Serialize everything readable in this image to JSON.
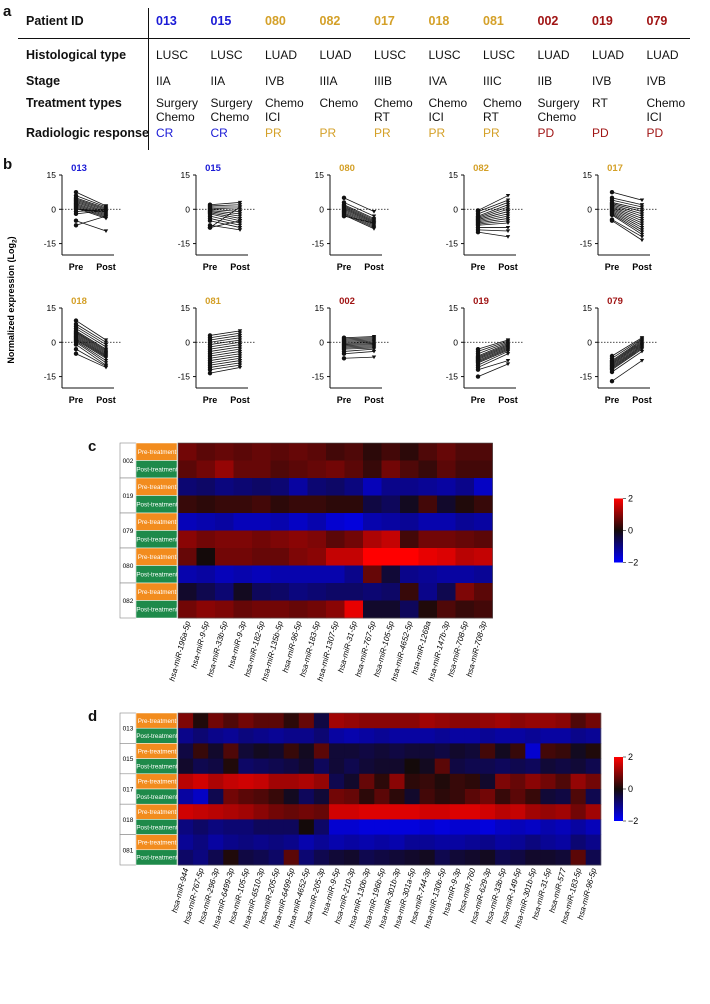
{
  "panel_letters": {
    "a": "a",
    "b": "b",
    "c": "c",
    "d": "d"
  },
  "panel_a": {
    "row_labels": {
      "patient_id": "Patient ID",
      "histological_type": "Histological type",
      "stage": "Stage",
      "treatment_types": "Treatment types",
      "radiologic_response": "Radiologic response"
    },
    "patients": [
      {
        "id": "013",
        "color": "#1a1ad6",
        "histo": "LUSC",
        "stage": "IIA",
        "treat1": "Surgery",
        "treat2": "Chemo",
        "response": "CR"
      },
      {
        "id": "015",
        "color": "#1a1ad6",
        "histo": "LUSC",
        "stage": "IIA",
        "treat1": "Surgery",
        "treat2": "Chemo",
        "response": "CR"
      },
      {
        "id": "080",
        "color": "#d4a028",
        "histo": "LUAD",
        "stage": "IVB",
        "treat1": "Chemo",
        "treat2": "ICI",
        "response": "PR"
      },
      {
        "id": "082",
        "color": "#d4a028",
        "histo": "LUAD",
        "stage": "IIIA",
        "treat1": "Chemo",
        "treat2": "",
        "response": "PR"
      },
      {
        "id": "017",
        "color": "#d4a028",
        "histo": "LUSC",
        "stage": "IIIB",
        "treat1": "Chemo",
        "treat2": "RT",
        "response": "PR"
      },
      {
        "id": "018",
        "color": "#d4a028",
        "histo": "LUSC",
        "stage": "IVA",
        "treat1": "Chemo",
        "treat2": "ICI",
        "response": "PR"
      },
      {
        "id": "081",
        "color": "#d4a028",
        "histo": "LUSC",
        "stage": "IIIC",
        "treat1": "Chemo",
        "treat2": "RT",
        "response": "PR"
      },
      {
        "id": "002",
        "color": "#a01414",
        "histo": "LUAD",
        "stage": "IIB",
        "treat1": "Surgery",
        "treat2": "Chemo",
        "response": "PD"
      },
      {
        "id": "019",
        "color": "#a01414",
        "histo": "LUAD",
        "stage": "IVB",
        "treat1": "RT",
        "treat2": "",
        "response": "PD"
      },
      {
        "id": "079",
        "color": "#a01414",
        "histo": "LUAD",
        "stage": "IVB",
        "treat1": "Chemo",
        "treat2": "ICI",
        "response": "PD"
      }
    ]
  },
  "chart_data": [
    {
      "type": "line",
      "panel": "b",
      "ylabel": "Normalized expression (Log",
      "ylabel_sub": "2",
      "ylabel_close": ")",
      "x_labels": [
        "Pre",
        "Post"
      ],
      "yticks": [
        "15",
        "0",
        "-15"
      ],
      "ylim": [
        -20,
        15
      ],
      "subplots": [
        {
          "title": "013",
          "color": "#1a1ad6",
          "pre": [
            7.5,
            6,
            5,
            4.5,
            4,
            3.5,
            3,
            2.5,
            2,
            1.5,
            1,
            0.5,
            0,
            -1,
            -2,
            -5,
            -7
          ],
          "post": [
            1.5,
            1,
            0.5,
            0,
            -0.5,
            -1,
            -1.5,
            -2,
            -2.5,
            -3,
            -3.5,
            -4,
            -1,
            0,
            -0.5,
            -9.5,
            -3
          ]
        },
        {
          "title": "015",
          "color": "#1a1ad6",
          "pre": [
            2,
            1.5,
            1,
            0.5,
            0,
            -0.5,
            -1,
            -1.5,
            -2,
            -3,
            -4,
            -5,
            -7,
            -8,
            -8
          ],
          "post": [
            3,
            2,
            1,
            0,
            -1,
            -2,
            -3,
            -4,
            -5,
            -6,
            -7,
            -8,
            -9,
            -5,
            1
          ]
        },
        {
          "title": "080",
          "color": "#d4a028",
          "pre": [
            5,
            3,
            2,
            1.5,
            1,
            0.5,
            0,
            -0.5,
            -1,
            -1.5,
            -2,
            -2.5,
            -3
          ],
          "post": [
            -1,
            -3,
            -4,
            -4.5,
            -5,
            -5.5,
            -6,
            -6.5,
            -7,
            -7.5,
            -8,
            -8.5,
            -6
          ]
        },
        {
          "title": "082",
          "color": "#d4a028",
          "pre": [
            -0.5,
            -1,
            -2,
            -3,
            -3.5,
            -4,
            -4.5,
            -5,
            -5.5,
            -6,
            -6.5,
            -7,
            -8,
            -9,
            -10
          ],
          "post": [
            6,
            4,
            3,
            2,
            1,
            0,
            -1,
            -2,
            -3,
            -4,
            -5,
            -6,
            -8,
            -9.5,
            -12
          ]
        },
        {
          "title": "017",
          "color": "#d4a028",
          "pre": [
            7.5,
            5,
            4,
            3,
            2.5,
            2,
            1.5,
            1,
            0.5,
            0,
            -0.5,
            -1,
            -1.5,
            -2,
            -2.5,
            -4.5,
            -5
          ],
          "post": [
            4,
            2,
            1,
            0,
            -1,
            -2,
            -3,
            -4,
            -5,
            -6,
            -7,
            -8,
            -9,
            -10,
            -11,
            -12,
            -13.5
          ]
        },
        {
          "title": "018",
          "color": "#d4a028",
          "pre": [
            9.5,
            8,
            7,
            6,
            5,
            4.5,
            4,
            3.5,
            3,
            2.5,
            2,
            1.5,
            1,
            0.5,
            0,
            -1,
            -3,
            -5
          ],
          "post": [
            1,
            0,
            -1,
            -2,
            -3,
            -3.5,
            -4,
            -4.5,
            -5,
            -5.5,
            -6,
            -6.5,
            -7,
            -8,
            -9,
            -10,
            -10.5,
            -11
          ]
        },
        {
          "title": "081",
          "color": "#d4a028",
          "pre": [
            3,
            2,
            1,
            0,
            -1,
            -2,
            -3,
            -4,
            -5,
            -6,
            -7,
            -8,
            -9,
            -10,
            -11,
            -12,
            -13.5
          ],
          "post": [
            5,
            4,
            3,
            2,
            1,
            0,
            -1,
            -2,
            -3,
            -4,
            -5,
            -6,
            -7,
            -8,
            -9,
            -10,
            -11
          ]
        },
        {
          "title": "002",
          "color": "#a01414",
          "pre": [
            2,
            1.5,
            1,
            0.5,
            0,
            -0.5,
            -1,
            -1.5,
            -2,
            -2.5,
            -3,
            -4,
            -5,
            -7
          ],
          "post": [
            2.5,
            2,
            1.5,
            1,
            0.5,
            0,
            -0.5,
            -1,
            -1.5,
            -2,
            -2.5,
            -3,
            -4,
            -6.5
          ]
        },
        {
          "title": "019",
          "color": "#a01414",
          "pre": [
            -3,
            -4,
            -5,
            -6,
            -6.5,
            -7,
            -7.5,
            -8,
            -8.5,
            -9,
            -10,
            -11,
            -12,
            -15
          ],
          "post": [
            1,
            0.5,
            0,
            -0.5,
            -1,
            -1.5,
            -2,
            -2.5,
            -3,
            -3.5,
            -4,
            -5,
            -8,
            -9.5
          ]
        },
        {
          "title": "079",
          "color": "#a01414",
          "pre": [
            -6,
            -7,
            -8,
            -8.5,
            -9,
            -9.5,
            -10,
            -10.5,
            -11,
            -11.5,
            -12,
            -13,
            -17
          ],
          "post": [
            2,
            1.5,
            1,
            0.5,
            0,
            -0.5,
            -1,
            -1.5,
            -2,
            -2.5,
            -3,
            -4,
            -8
          ]
        }
      ]
    },
    {
      "type": "heatmap",
      "panel": "c",
      "patients": [
        "002",
        "019",
        "079",
        "080",
        "082"
      ],
      "row_labels": [
        "Pre-treatment",
        "Post-treatment"
      ],
      "columns": [
        "hsa-miR-196a-5p",
        "hsa-miR-9-5p",
        "hsa-miR-33b-5p",
        "hsa-miR-9-3p",
        "hsa-miR-182-5p",
        "hsa-miR-135b-5p",
        "hsa-miR-96-5p",
        "hsa-miR-183-5p",
        "hsa-miR-1307-5p",
        "hsa-miR-31-5p",
        "hsa-miR-767-5p",
        "hsa-miR-105-5p",
        "hsa-miR-4652-5p",
        "hsa-miR-1269a",
        "hsa-miR-147b-3p",
        "hsa-miR-708-5p",
        "hsa-miR-708-3p"
      ],
      "scale_labels": [
        "2",
        "0",
        "−2"
      ],
      "values": [
        [
          0.8,
          0.6,
          0.7,
          0.6,
          0.7,
          0.6,
          0.7,
          0.6,
          0.4,
          0.5,
          0.2,
          0.4,
          0.2,
          0.5,
          0.7,
          0.5,
          0.5
        ],
        [
          0.6,
          0.8,
          1.1,
          0.7,
          0.7,
          0.5,
          0.6,
          0.7,
          0.8,
          0.6,
          0.3,
          0.8,
          0.5,
          0.3,
          0.6,
          0.4,
          0.4
        ],
        [
          -0.8,
          -0.7,
          -0.9,
          -0.8,
          -0.7,
          -0.8,
          -1.2,
          -0.8,
          -0.7,
          -0.9,
          -1.4,
          -1.0,
          -1.0,
          -1.1,
          -1.2,
          -1.0,
          -1.5
        ],
        [
          0.3,
          0.2,
          0.3,
          0.3,
          0.4,
          0.2,
          0.3,
          0.3,
          0.2,
          0.2,
          -0.4,
          -0.6,
          -0.1,
          0.4,
          -0.2,
          0.1,
          0.3
        ],
        [
          -1.4,
          -1.3,
          -1.2,
          -1.4,
          -1.4,
          -1.3,
          -1.5,
          -1.3,
          -1.6,
          -1.7,
          -1.3,
          -1.2,
          -1.1,
          -1.3,
          -1.3,
          -1.1,
          -1.2
        ],
        [
          1.0,
          0.8,
          0.9,
          0.9,
          0.8,
          0.9,
          1.0,
          0.9,
          0.6,
          0.8,
          1.3,
          1.5,
          0.4,
          0.8,
          0.8,
          0.7,
          0.6
        ],
        [
          0.7,
          0.0,
          0.8,
          0.8,
          0.7,
          0.7,
          0.9,
          1.0,
          1.5,
          1.5,
          2.0,
          2.0,
          2.0,
          1.8,
          1.7,
          1.4,
          1.5
        ],
        [
          -1.3,
          -1.2,
          -1.4,
          -1.3,
          -1.4,
          -1.3,
          -1.3,
          -1.3,
          -1.3,
          -1.0,
          0.7,
          -0.3,
          -1.0,
          -1.1,
          -1.2,
          -1.2,
          -1.1
        ],
        [
          -0.2,
          -0.5,
          -0.8,
          -0.1,
          -0.6,
          -0.7,
          -0.9,
          -0.8,
          -0.7,
          -0.7,
          -0.8,
          -0.7,
          0.3,
          -1.0,
          -0.5,
          0.9,
          0.6
        ],
        [
          0.8,
          1.0,
          0.9,
          0.7,
          0.8,
          0.8,
          0.7,
          0.8,
          1.0,
          1.8,
          -0.2,
          -0.2,
          -0.6,
          0.1,
          0.5,
          0.3,
          0.4
        ]
      ]
    },
    {
      "type": "heatmap",
      "panel": "d",
      "patients": [
        "013",
        "015",
        "017",
        "018",
        "081"
      ],
      "row_labels": [
        "Pre-treatment",
        "Post-treatment"
      ],
      "columns": [
        "hsa-miR-944",
        "hsa-miR-767-5p",
        "hsa-miR-296-3p",
        "hsa-miR-6499-3p",
        "hsa-miR-105-5p",
        "hsa-miR-6510-3p",
        "hsa-miR-205-5p",
        "hsa-miR-6499-5p",
        "hsa-miR-4652-5p",
        "hsa-miR-205-3p",
        "hsa-miR-9-5p",
        "hsa-miR-210-3p",
        "hsa-miR-130b-3p",
        "hsa-miR-196b-5p",
        "hsa-miR-301b-3p",
        "hsa-miR-301a-5p",
        "hsa-miR-744-3p",
        "hsa-miR-130b-5p",
        "hsa-miR-9-3p",
        "hsa-miR-760",
        "hsa-miR-629-3p",
        "hsa-miR-33b-5p",
        "hsa-miR-149-5p",
        "hsa-miR-301b-5p",
        "hsa-miR-31-5p",
        "hsa-miR-577",
        "hsa-miR-183-5p",
        "hsa-miR-96-5p"
      ],
      "scale_labels": [
        "2",
        "0",
        "−2"
      ],
      "values": [
        [
          0.9,
          0.1,
          0.8,
          0.5,
          0.8,
          0.6,
          0.6,
          0.2,
          0.7,
          -0.4,
          1.2,
          1.1,
          1.0,
          1.0,
          1.0,
          1.0,
          1.2,
          1.1,
          1.0,
          1.0,
          1.1,
          1.2,
          1.0,
          1.1,
          1.1,
          1.0,
          0.5,
          0.8
        ],
        [
          -1.0,
          -0.8,
          -1.0,
          -1.1,
          -0.9,
          -1.0,
          -1.1,
          -1.0,
          -1.0,
          -0.8,
          -1.2,
          -1.3,
          -1.2,
          -1.1,
          -1.2,
          -1.2,
          -1.2,
          -1.1,
          -1.2,
          -1.2,
          -1.1,
          -1.2,
          -1.2,
          -1.1,
          -1.2,
          -1.2,
          -1.0,
          -1.1
        ],
        [
          -0.4,
          0.3,
          -0.2,
          0.5,
          -0.3,
          -0.1,
          -0.2,
          0.3,
          -0.1,
          0.6,
          -0.3,
          -0.3,
          -0.4,
          -0.3,
          -0.4,
          -0.3,
          -0.3,
          -0.4,
          -0.2,
          -0.3,
          0.4,
          -0.1,
          0.3,
          -1.6,
          0.4,
          0.3,
          -0.1,
          0.1
        ],
        [
          -0.2,
          -0.5,
          -0.4,
          0.1,
          -0.7,
          -0.6,
          -0.5,
          -0.4,
          -0.2,
          -0.6,
          -0.3,
          -0.5,
          -0.3,
          -0.2,
          -0.2,
          0.0,
          -0.1,
          0.6,
          -0.4,
          -0.5,
          -0.5,
          -0.6,
          -0.5,
          -0.6,
          -0.3,
          -0.4,
          -0.3,
          -0.5
        ],
        [
          1.4,
          1.6,
          1.3,
          1.5,
          1.6,
          1.5,
          1.2,
          1.2,
          1.3,
          1.1,
          -0.5,
          -0.2,
          0.7,
          0.2,
          1.0,
          0.2,
          0.3,
          0.1,
          0.3,
          0.2,
          -0.2,
          0.9,
          0.7,
          1.0,
          0.8,
          0.5,
          1.1,
          0.8
        ],
        [
          -1.2,
          -1.5,
          -0.5,
          0.8,
          0.6,
          0.5,
          0.3,
          -0.1,
          -0.6,
          -0.3,
          0.8,
          0.7,
          0.2,
          0.6,
          0.2,
          -0.2,
          0.4,
          0.2,
          0.3,
          0.6,
          0.8,
          0.3,
          0.6,
          0.3,
          -0.3,
          -0.4,
          0.5,
          -0.5
        ],
        [
          1.6,
          1.5,
          1.4,
          1.3,
          1.2,
          1.0,
          0.8,
          0.7,
          0.8,
          0.7,
          1.6,
          1.6,
          1.7,
          1.7,
          1.7,
          1.7,
          1.6,
          1.6,
          1.7,
          1.7,
          1.6,
          1.4,
          1.5,
          1.2,
          1.1,
          1.2,
          0.8,
          1.2
        ],
        [
          -0.9,
          -0.7,
          -0.9,
          -0.8,
          -0.8,
          -0.6,
          -0.6,
          -0.6,
          0.0,
          -0.7,
          -1.6,
          -1.6,
          -1.7,
          -1.7,
          -1.7,
          -1.7,
          -1.6,
          -1.7,
          -1.6,
          -1.6,
          -1.7,
          -1.5,
          -1.4,
          -1.5,
          -1.3,
          -1.4,
          -1.2,
          -1.4
        ],
        [
          -1.1,
          -0.9,
          -1.2,
          -1.0,
          -0.9,
          -1.0,
          -0.9,
          -1.0,
          -1.3,
          -1.1,
          -1.3,
          -1.2,
          -1.3,
          -1.2,
          -1.3,
          -1.1,
          -1.1,
          -1.2,
          -1.2,
          -1.1,
          -1.0,
          -1.2,
          -1.1,
          -0.9,
          -1.1,
          -1.2,
          -0.8,
          -1.0
        ],
        [
          -0.7,
          -0.9,
          -0.5,
          0.1,
          -0.4,
          -0.5,
          -0.7,
          0.6,
          -0.8,
          -0.5,
          -0.3,
          -0.2,
          -0.5,
          -0.4,
          -0.3,
          -0.2,
          -0.1,
          -0.5,
          -0.3,
          -0.2,
          -0.1,
          -0.5,
          -0.4,
          -0.2,
          -0.2,
          -0.3,
          0.6,
          -0.5
        ]
      ]
    }
  ]
}
